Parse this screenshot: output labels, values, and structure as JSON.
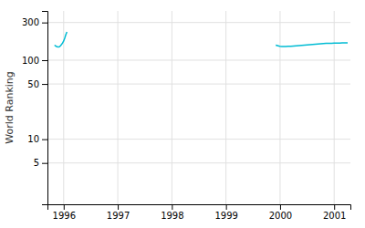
{
  "chart_data": {
    "type": "line",
    "ylabel": "World Ranking",
    "color": "#00bcd4",
    "log": "y",
    "grid": true,
    "xlim": [
      1995.7,
      2001.3
    ],
    "xticks": [
      1996,
      1997,
      1998,
      1999,
      2000,
      2001
    ],
    "ylim": [
      1.5,
      420
    ],
    "yticks": [
      5,
      10,
      50,
      100,
      300
    ],
    "series": [
      {
        "x": [
          1995.83,
          1995.86,
          1995.88,
          1995.9,
          1995.92,
          1995.94,
          1995.96,
          1995.98,
          1996.0,
          1996.02,
          1996.04,
          1996.06
        ],
        "values": [
          155,
          150,
          148,
          147,
          148,
          152,
          158,
          165,
          175,
          190,
          210,
          228
        ]
      },
      {
        "x": [
          1999.92,
          1999.95,
          1999.98,
          2000.0,
          2000.03,
          2000.06,
          2000.1,
          2000.15,
          2000.2,
          2000.25,
          2000.3,
          2000.35,
          2000.4,
          2000.45,
          2000.5,
          2000.55,
          2000.6,
          2000.65,
          2000.7,
          2000.75,
          2000.8,
          2000.85,
          2000.9,
          2000.95,
          2001.0,
          2001.05,
          2001.1,
          2001.15,
          2001.2,
          2001.25
        ],
        "values": [
          155,
          153,
          151,
          150,
          149,
          149,
          149,
          150,
          150,
          151,
          152,
          153,
          154,
          155,
          156,
          157,
          158,
          159,
          160,
          161,
          162,
          163,
          163,
          164,
          165,
          165,
          165,
          166,
          166,
          166
        ]
      }
    ]
  }
}
